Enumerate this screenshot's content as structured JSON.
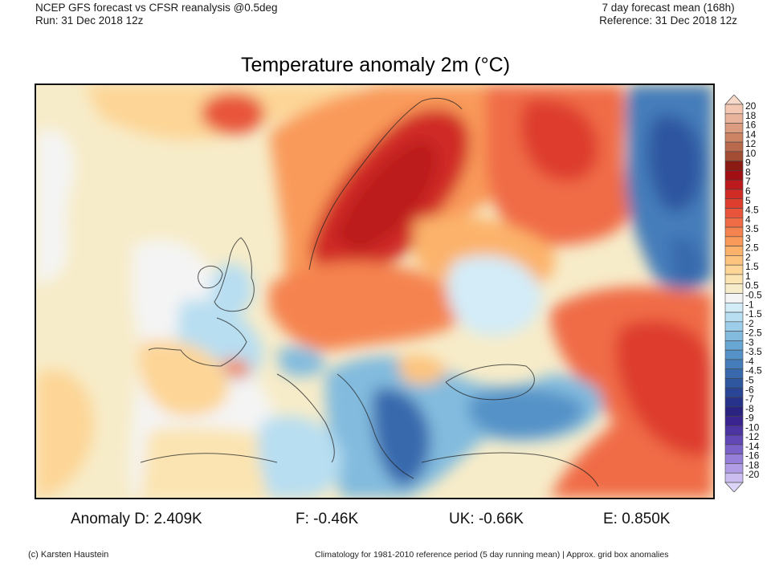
{
  "header": {
    "left_line1": "NCEP GFS forecast vs CFSR reanalysis @0.5deg",
    "left_line2": "Run: 31 Dec 2018 12z",
    "right_line1": "7 day forecast mean (168h)",
    "right_line2": "Reference: 31 Dec 2018 12z"
  },
  "title": "Temperature anomaly 2m (°C)",
  "stats": [
    {
      "label": "Anomaly D:",
      "value": "2.409K"
    },
    {
      "label": "F:",
      "value": "-0.46K"
    },
    {
      "label": "UK:",
      "value": "-0.66K"
    },
    {
      "label": "E:",
      "value": "0.850K"
    }
  ],
  "footer": {
    "credit": "(c) Karsten Haustein",
    "note": "Climatology for 1981-2010 reference period (5 day running mean) | Approx. grid box anomalies"
  },
  "colorbar": {
    "unit": "°C",
    "levels": [
      {
        "label": "20",
        "color": "#f3c7b1"
      },
      {
        "label": "18",
        "color": "#e8b39a"
      },
      {
        "label": "16",
        "color": "#dc9c80"
      },
      {
        "label": "14",
        "color": "#cc8465"
      },
      {
        "label": "12",
        "color": "#b96a4d"
      },
      {
        "label": "10",
        "color": "#a24d34"
      },
      {
        "label": "9",
        "color": "#8b1a12"
      },
      {
        "label": "8",
        "color": "#a10f14"
      },
      {
        "label": "7",
        "color": "#bc1a1e"
      },
      {
        "label": "6",
        "color": "#d02b25"
      },
      {
        "label": "5",
        "color": "#de3e2e"
      },
      {
        "label": "4.5",
        "color": "#e8553a"
      },
      {
        "label": "4",
        "color": "#f06c46"
      },
      {
        "label": "3.5",
        "color": "#f5834f"
      },
      {
        "label": "3",
        "color": "#f99a5a"
      },
      {
        "label": "2.5",
        "color": "#fcb26a"
      },
      {
        "label": "2",
        "color": "#fdc47f"
      },
      {
        "label": "1.5",
        "color": "#fdd596"
      },
      {
        "label": "1",
        "color": "#fbe4b1"
      },
      {
        "label": "0.5",
        "color": "#f7ecc9"
      },
      {
        "label": "-0.5",
        "color": "#f4f4f4"
      },
      {
        "label": "-1",
        "color": "#d3ecf8"
      },
      {
        "label": "-1.5",
        "color": "#b8def1"
      },
      {
        "label": "-2",
        "color": "#9dcde8"
      },
      {
        "label": "-2.5",
        "color": "#82bbde"
      },
      {
        "label": "-3",
        "color": "#68a7d3"
      },
      {
        "label": "-3.5",
        "color": "#5592c7"
      },
      {
        "label": "-4",
        "color": "#457dba"
      },
      {
        "label": "-4.5",
        "color": "#3869ad"
      },
      {
        "label": "-5",
        "color": "#2f57a0"
      },
      {
        "label": "-6",
        "color": "#2a4596"
      },
      {
        "label": "-7",
        "color": "#27338b"
      },
      {
        "label": "-8",
        "color": "#2b2382"
      },
      {
        "label": "-9",
        "color": "#3a2590"
      },
      {
        "label": "-10",
        "color": "#4d34a3"
      },
      {
        "label": "-12",
        "color": "#6248b6"
      },
      {
        "label": "-14",
        "color": "#7a62c8"
      },
      {
        "label": "-16",
        "color": "#957fd9"
      },
      {
        "label": "-18",
        "color": "#b09de6"
      },
      {
        "label": "-20",
        "color": "#cbbdf0"
      }
    ],
    "over_color": "#f6d9c9",
    "under_color": "#ddd5f7"
  },
  "map": {
    "region": "Europe",
    "field": "2m temperature anomaly, 7-day forecast mean",
    "areas": [
      {
        "name": "scandinavia",
        "anomaly": 6
      },
      {
        "name": "western-russia",
        "anomaly": 5
      },
      {
        "name": "ural-kazakhstan",
        "anomaly": -4.5
      },
      {
        "name": "balkans-greece",
        "anomaly": -4
      },
      {
        "name": "turkey",
        "anomaly": -3
      },
      {
        "name": "british-isles",
        "anomaly": -1.5
      },
      {
        "name": "france",
        "anomaly": -1
      },
      {
        "name": "iceland",
        "anomaly": 4
      },
      {
        "name": "middle-east",
        "anomaly": 4
      },
      {
        "name": "central-europe",
        "anomaly": 3
      }
    ]
  }
}
